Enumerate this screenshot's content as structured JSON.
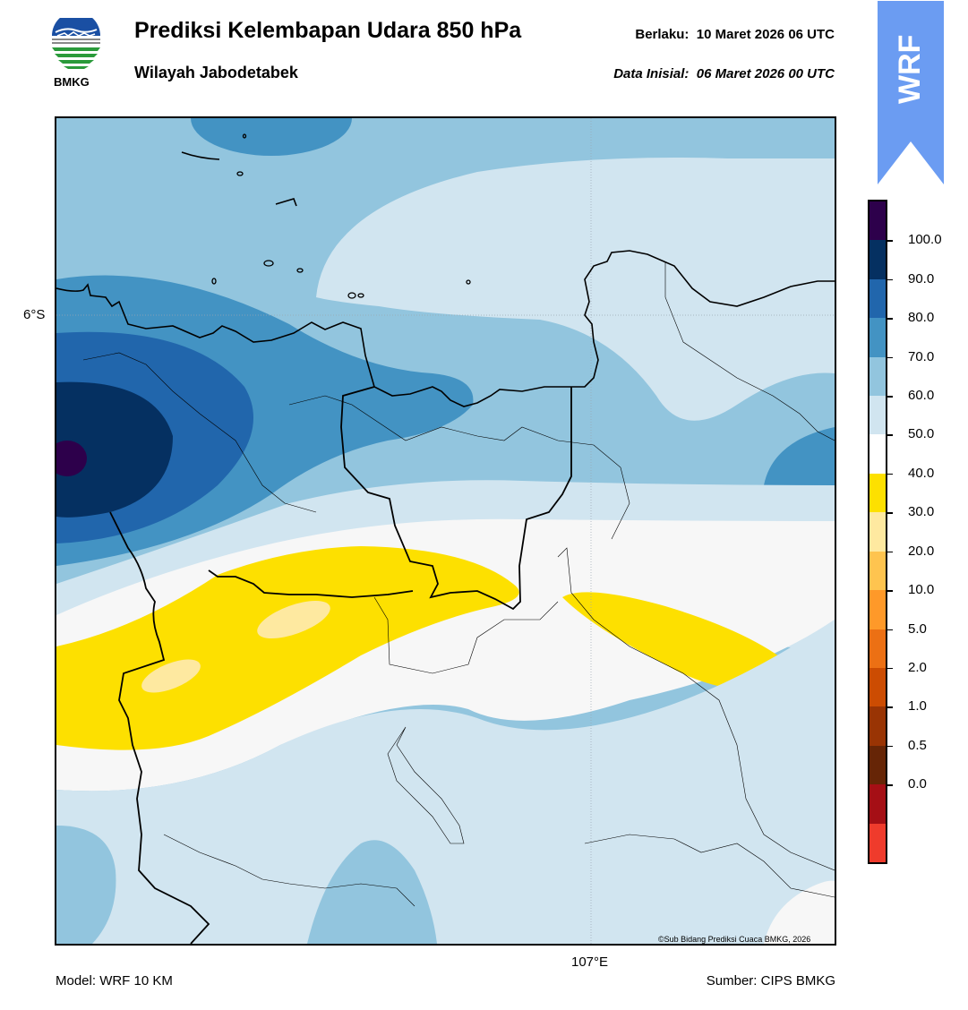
{
  "header": {
    "title": "Prediksi Kelembapan Udara 850 hPa",
    "subtitle": "Wilayah Jabodetabek",
    "valid_label": "Berlaku:",
    "valid_value": "10 Maret 2026 06 UTC",
    "init_label": "Data Inisial:",
    "init_value": "06 Maret 2026 00 UTC"
  },
  "logo": {
    "text": "BMKG",
    "colors": {
      "blue": "#1a4fa3",
      "green": "#2a9a3a"
    }
  },
  "badge": {
    "text": "WRF",
    "color": "#6b9cf2"
  },
  "map": {
    "lat_label": "6°S",
    "lon_label": "107°E",
    "credit": "©Sub Bidang Prediksi Cuaca BMKG, 2026",
    "colors": {
      "c50_60": "#d1e5f0",
      "c60_70": "#92c5de",
      "c70_80": "#4393c3",
      "c80_90": "#2166ac",
      "c90_100": "#053061",
      "c100": "#2d004b",
      "c40_50": "#f7f7f7",
      "c30_40": "#fde000",
      "c20_30": "#fee9a0"
    }
  },
  "colorbar": {
    "ticks": [
      "100.0",
      "90.0",
      "80.0",
      "70.0",
      "60.0",
      "50.0",
      "40.0",
      "30.0",
      "20.0",
      "10.0",
      "5.0",
      "2.0",
      "1.0",
      "0.5",
      "0.0"
    ],
    "colors": [
      "#2d004b",
      "#053061",
      "#2166ac",
      "#4393c3",
      "#92c5de",
      "#d1e5f0",
      "#ffffff",
      "#fde000",
      "#fee9a0",
      "#fec44f",
      "#fe9929",
      "#ec7014",
      "#cc4c02",
      "#993404",
      "#662506",
      "#a50f15",
      "#ef3b2c"
    ]
  },
  "footer": {
    "model": "Model: WRF 10 KM",
    "source": "Sumber: CIPS BMKG"
  }
}
